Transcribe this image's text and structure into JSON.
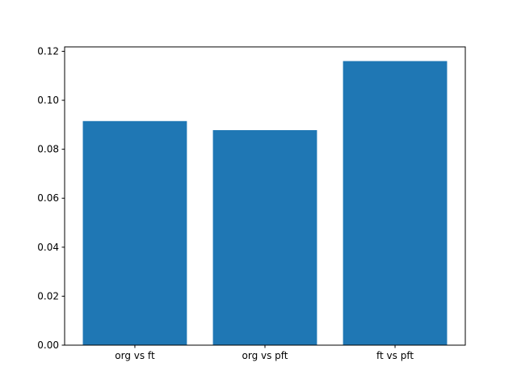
{
  "chart_data": {
    "type": "bar",
    "categories": [
      "org vs ft",
      "org vs pft",
      "ft vs pft"
    ],
    "values": [
      0.0915,
      0.0878,
      0.116
    ],
    "title": "",
    "xlabel": "",
    "ylabel": "",
    "ylim": [
      0,
      0.1218
    ],
    "yticks": [
      0.0,
      0.02,
      0.04,
      0.06,
      0.08,
      0.1,
      0.12
    ],
    "ytick_decimals": 2,
    "bar_color": "#1f77b4",
    "bar_width_fraction": 0.8,
    "grid": false,
    "legend": null,
    "spine_color": "#000000"
  }
}
